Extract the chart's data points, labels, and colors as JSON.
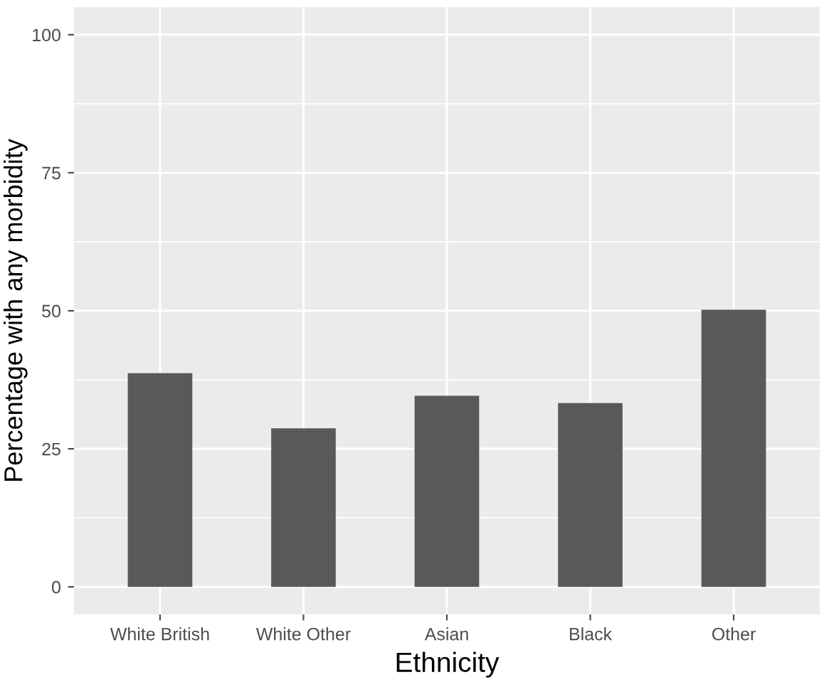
{
  "chart_data": {
    "type": "bar",
    "xlabel": "Ethnicity",
    "ylabel": "Percentage with any morbidity",
    "categories": [
      "White British",
      "White Other",
      "Asian",
      "Black",
      "Other"
    ],
    "values": [
      38.7,
      28.7,
      34.6,
      33.3,
      50.2
    ],
    "color": "#595959",
    "ylim": [
      -5,
      105
    ],
    "yticks": [
      0,
      25,
      50,
      75,
      100
    ],
    "grid": true
  }
}
